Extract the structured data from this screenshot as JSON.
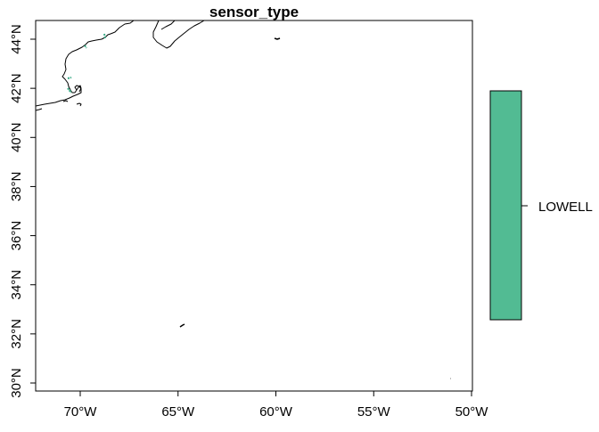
{
  "map": {
    "title": "sensor_type",
    "x_axis": {
      "ticks": [
        {
          "value": -70,
          "label": "70°W"
        },
        {
          "value": -65,
          "label": "65°W"
        },
        {
          "value": -60,
          "label": "60°W"
        },
        {
          "value": -55,
          "label": "55°W"
        },
        {
          "value": -50,
          "label": "50°W"
        }
      ]
    },
    "y_axis": {
      "ticks": [
        {
          "value": 30,
          "label": "30°N"
        },
        {
          "value": 32,
          "label": "32°N"
        },
        {
          "value": 34,
          "label": "34°N"
        },
        {
          "value": 36,
          "label": "36°N"
        },
        {
          "value": 38,
          "label": "38°N"
        },
        {
          "value": 40,
          "label": "40°N"
        },
        {
          "value": 42,
          "label": "42°N"
        },
        {
          "value": 44,
          "label": "44°N"
        }
      ]
    },
    "legend": {
      "entries": [
        {
          "label": "LOWELL",
          "color": "#52bb93"
        }
      ]
    },
    "sensor_color": "#3aaa86"
  }
}
